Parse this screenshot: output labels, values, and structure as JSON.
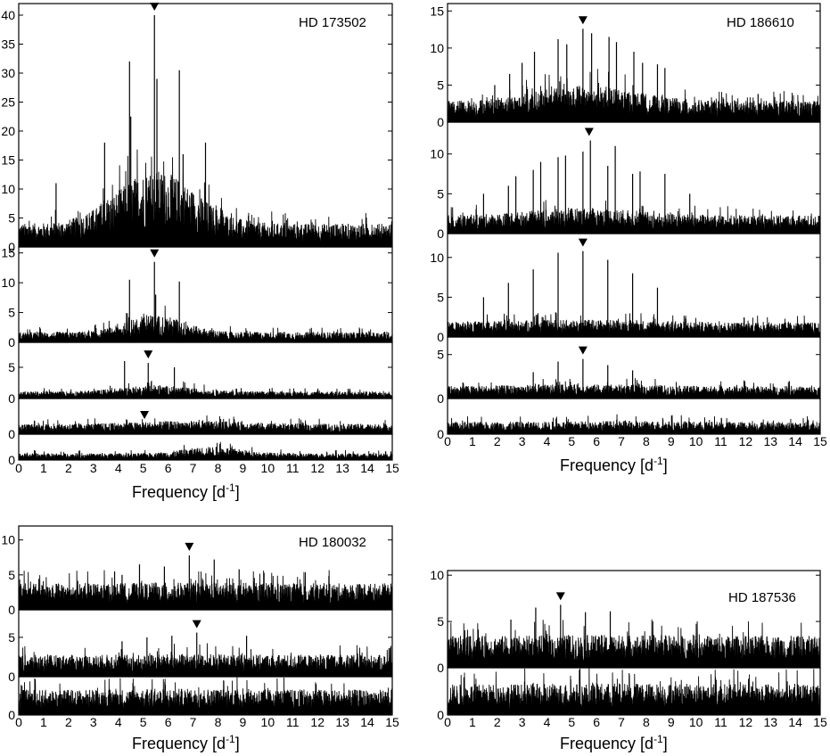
{
  "chart_data": [
    {
      "type": "line",
      "name": "HD 173502",
      "xlabel": "Frequency [d",
      "xlabel_sup": "-1",
      "xlabel_end": "]",
      "xlim": [
        0,
        15
      ],
      "x_ticks": [
        "0",
        "1",
        "2",
        "3",
        "4",
        "5",
        "6",
        "7",
        "8",
        "9",
        "10",
        "11",
        "12",
        "13",
        "14",
        "15"
      ],
      "panels": [
        {
          "ylim": [
            0,
            42
          ],
          "yticks": [
            0,
            5,
            10,
            15,
            20,
            25,
            30,
            35,
            40
          ],
          "noise_level": 3.5,
          "envelope_center": 5.5,
          "envelope_width": 2.2,
          "envelope_amp": 8,
          "marker_x": 5.45,
          "peaks": [
            [
              4.45,
              32
            ],
            [
              4.5,
              22.5
            ],
            [
              5.45,
              40
            ],
            [
              5.55,
              29
            ],
            [
              6.45,
              30.5
            ],
            [
              3.45,
              18
            ],
            [
              7.5,
              18
            ],
            [
              1.5,
              11
            ],
            [
              6.6,
              16
            ]
          ]
        },
        {
          "ylim": [
            0,
            16
          ],
          "yticks": [
            0,
            5,
            10,
            15
          ],
          "noise_level": 1.5,
          "envelope_center": 5.5,
          "envelope_width": 1.6,
          "envelope_amp": 2.5,
          "marker_x": 5.45,
          "peaks": [
            [
              4.45,
              10.5
            ],
            [
              5.45,
              13.5
            ],
            [
              6.45,
              10.2
            ],
            [
              5.5,
              8
            ]
          ]
        },
        {
          "ylim": [
            0,
            9
          ],
          "yticks": [
            0,
            5
          ],
          "noise_level": 1.0,
          "envelope_center": 5.5,
          "envelope_width": 2.0,
          "envelope_amp": 0.8,
          "marker_x": 5.2,
          "peaks": [
            [
              4.25,
              6
            ],
            [
              5.2,
              5.7
            ],
            [
              6.25,
              5.0
            ]
          ]
        },
        {
          "ylim": [
            0,
            4
          ],
          "yticks": [
            0
          ],
          "noise_level": 1.0,
          "envelope_center": 7.0,
          "envelope_width": 3.0,
          "envelope_amp": 0.3,
          "marker_x": 5.05,
          "peaks": []
        },
        {
          "ylim": [
            0,
            4
          ],
          "yticks": [
            0
          ],
          "noise_level": 0.9,
          "envelope_center": 7.8,
          "envelope_width": 1.6,
          "envelope_amp": 0.9,
          "peaks": []
        }
      ]
    },
    {
      "type": "line",
      "name": "HD 186610",
      "xlabel": "Frequency [d",
      "xlabel_sup": "-1",
      "xlabel_end": "]",
      "xlim": [
        0,
        15
      ],
      "x_ticks": [
        "0",
        "1",
        "2",
        "3",
        "4",
        "5",
        "6",
        "7",
        "8",
        "9",
        "10",
        "11",
        "12",
        "13",
        "14",
        "15"
      ],
      "panels": [
        {
          "ylim": [
            0,
            16
          ],
          "yticks": [
            0,
            5,
            10,
            15
          ],
          "noise_level": 2.5,
          "envelope_center": 5.5,
          "envelope_width": 2.8,
          "envelope_amp": 1.8,
          "marker_x": 5.45,
          "peaks": [
            [
              2.5,
              6.5
            ],
            [
              3.0,
              8
            ],
            [
              3.5,
              9.5
            ],
            [
              4.45,
              11.2
            ],
            [
              4.8,
              10.5
            ],
            [
              5.45,
              12.6
            ],
            [
              5.8,
              12
            ],
            [
              6.5,
              11.5
            ],
            [
              6.8,
              10.8
            ],
            [
              7.5,
              9.5
            ],
            [
              7.85,
              8
            ],
            [
              8.45,
              7.8
            ],
            [
              8.75,
              7.3
            ],
            [
              1.9,
              5
            ],
            [
              12.5,
              3.8
            ]
          ]
        },
        {
          "ylim": [
            0,
            14
          ],
          "yticks": [
            0,
            5,
            10
          ],
          "noise_level": 2.0,
          "envelope_center": 5.5,
          "envelope_width": 3.0,
          "envelope_amp": 0.8,
          "marker_x": 5.7,
          "peaks": [
            [
              1.45,
              5
            ],
            [
              2.45,
              6
            ],
            [
              2.75,
              7.2
            ],
            [
              3.45,
              8
            ],
            [
              3.75,
              9
            ],
            [
              4.45,
              9.6
            ],
            [
              4.75,
              9.8
            ],
            [
              5.45,
              10.3
            ],
            [
              5.75,
              11.7
            ],
            [
              6.45,
              8.5
            ],
            [
              6.75,
              11
            ],
            [
              7.45,
              7.5
            ],
            [
              7.75,
              7.8
            ],
            [
              8.75,
              7.5
            ],
            [
              9.75,
              5
            ]
          ]
        },
        {
          "ylim": [
            0,
            13
          ],
          "yticks": [
            0,
            5,
            10
          ],
          "noise_level": 1.6,
          "envelope_center": 5.5,
          "envelope_width": 4.0,
          "envelope_amp": 0.3,
          "marker_x": 5.45,
          "peaks": [
            [
              1.45,
              5
            ],
            [
              2.45,
              6.8
            ],
            [
              3.45,
              8.5
            ],
            [
              4.45,
              10.6
            ],
            [
              5.45,
              10.8
            ],
            [
              6.45,
              9.7
            ],
            [
              7.45,
              8
            ],
            [
              8.45,
              6.2
            ]
          ]
        },
        {
          "ylim": [
            0,
            7
          ],
          "yticks": [
            0,
            5
          ],
          "noise_level": 1.2,
          "envelope_center": 5.5,
          "envelope_width": 4.0,
          "envelope_amp": 0.2,
          "marker_x": 5.45,
          "peaks": [
            [
              3.45,
              3.0
            ],
            [
              4.45,
              4.2
            ],
            [
              5.45,
              4.5
            ],
            [
              6.45,
              3.8
            ],
            [
              7.45,
              3.2
            ]
          ]
        },
        {
          "ylim": [
            0,
            4
          ],
          "yticks": [
            0
          ],
          "noise_level": 1.2,
          "envelope_center": 7,
          "envelope_width": 3,
          "envelope_amp": 0.1,
          "peaks": []
        }
      ]
    },
    {
      "type": "line",
      "name": "HD 180032",
      "xlabel": "Frequency [d",
      "xlabel_sup": "-1",
      "xlabel_end": "]",
      "xlim": [
        0,
        15
      ],
      "x_ticks": [
        "0",
        "1",
        "2",
        "3",
        "4",
        "5",
        "6",
        "7",
        "8",
        "9",
        "10",
        "11",
        "12",
        "13",
        "14",
        "15"
      ],
      "panels": [
        {
          "ylim": [
            0,
            12
          ],
          "yticks": [
            0,
            5,
            10
          ],
          "noise_level": 3.3,
          "envelope_center": 7,
          "envelope_width": 3,
          "envelope_amp": 0.1,
          "marker_x": 6.85,
          "peaks": [
            [
              3.85,
              5.5
            ],
            [
              4.15,
              5
            ],
            [
              4.85,
              6.5
            ],
            [
              5.85,
              6.2
            ],
            [
              6.85,
              7.8
            ],
            [
              7.85,
              7.2
            ],
            [
              8.85,
              5.8
            ],
            [
              9.85,
              5.3
            ]
          ]
        },
        {
          "ylim": [
            0,
            8.5
          ],
          "yticks": [
            0,
            5
          ],
          "noise_level": 2.4,
          "envelope_center": 7,
          "envelope_width": 3,
          "envelope_amp": 0.1,
          "marker_x": 7.15,
          "peaks": [
            [
              4.15,
              4.5
            ],
            [
              5.15,
              5
            ],
            [
              6.15,
              5.2
            ],
            [
              7.15,
              5.6
            ],
            [
              9.15,
              5.2
            ]
          ]
        },
        {
          "ylim": [
            0,
            4
          ],
          "yticks": [
            0
          ],
          "noise_level": 2.3,
          "envelope_center": 7,
          "envelope_width": 3,
          "envelope_amp": 0.1,
          "peaks": []
        }
      ]
    },
    {
      "type": "line",
      "name": "HD 187536",
      "xlabel": "Frequency [d",
      "xlabel_sup": "-1",
      "xlabel_end": "]",
      "xlim": [
        0,
        15
      ],
      "x_ticks": [
        "0",
        "1",
        "2",
        "3",
        "4",
        "5",
        "6",
        "7",
        "8",
        "9",
        "10",
        "11",
        "12",
        "13",
        "14",
        "15"
      ],
      "panels": [
        {
          "ylim": [
            0,
            10.5
          ],
          "yticks": [
            0,
            5,
            10
          ],
          "noise_level": 3.0,
          "envelope_center": 7,
          "envelope_width": 3,
          "envelope_amp": 0.1,
          "marker_x": 4.55,
          "peaks": [
            [
              3.55,
              6.5
            ],
            [
              4.55,
              6.8
            ],
            [
              5.55,
              6
            ],
            [
              6.55,
              6.1
            ],
            [
              2.55,
              5.2
            ]
          ]
        },
        {
          "ylim": [
            0,
            5.8
          ],
          "yticks": [
            0
          ],
          "noise_level": 3.3,
          "envelope_center": 7,
          "envelope_width": 3,
          "envelope_amp": 0.1,
          "peaks": []
        }
      ]
    }
  ]
}
